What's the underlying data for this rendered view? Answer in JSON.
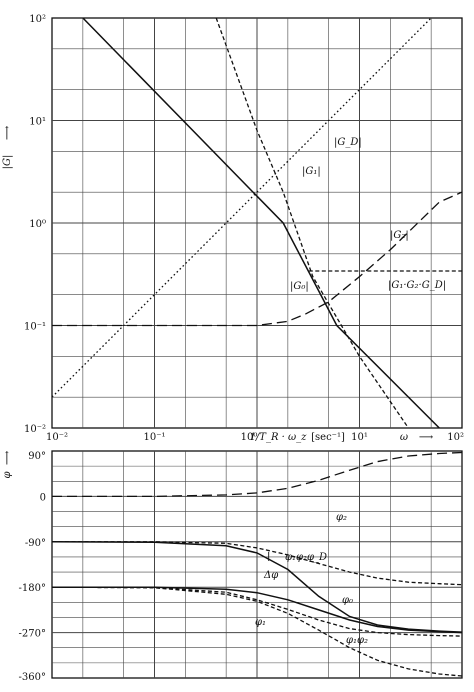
{
  "chart_data": [
    {
      "type": "line",
      "xscale": "log",
      "yscale": "log",
      "xlim": [
        0.01,
        100
      ],
      "ylim": [
        0.01,
        100
      ],
      "ylabel": "|G|",
      "xlabel_left": "1/T_R · ω_z",
      "xlabel_unit": "[sec⁻¹]",
      "xlabel_right": "ω",
      "x_ticks": [
        {
          "v": 0.01,
          "label": "10⁻²"
        },
        {
          "v": 0.1,
          "label": "10⁻¹"
        },
        {
          "v": 1,
          "label": "10⁰"
        },
        {
          "v": 10,
          "label": "10¹"
        },
        {
          "v": 100,
          "label": "10²"
        }
      ],
      "y_ticks": [
        {
          "v": 100,
          "label": "10²"
        },
        {
          "v": 10,
          "label": "10¹"
        },
        {
          "v": 1,
          "label": "10⁰"
        },
        {
          "v": 0.1,
          "label": "10⁻¹"
        },
        {
          "v": 0.01,
          "label": "10⁻²"
        }
      ],
      "grid": true,
      "series": [
        {
          "name": "|G₀|",
          "style": "solid",
          "x": [
            0.02,
            1.8,
            6,
            60
          ],
          "y": [
            100,
            1.0,
            0.1,
            0.01
          ]
        },
        {
          "name": "|G_D|",
          "style": "dotted",
          "x": [
            0.01,
            100
          ],
          "y": [
            0.02,
            200
          ]
        },
        {
          "name": "|G₁|",
          "style": "short-dash",
          "x": [
            0.4,
            1.0,
            1.8,
            3.5,
            10,
            30
          ],
          "y": [
            100,
            8.0,
            2.0,
            0.3,
            0.05,
            0.01
          ]
        },
        {
          "name": "|G₂|",
          "style": "long-dash",
          "x": [
            0.01,
            1.0,
            2.0,
            3.0,
            5.0,
            10,
            20,
            60,
            100
          ],
          "y": [
            0.1,
            0.1,
            0.11,
            0.13,
            0.17,
            0.3,
            0.55,
            1.6,
            2.0
          ]
        },
        {
          "name": "|G₁·G₂·G_D|",
          "style": "short-dash",
          "x": [
            3.2,
            100
          ],
          "y": [
            0.34,
            0.34
          ]
        }
      ],
      "annotations": [
        "|G_D|",
        "|G₁|",
        "|G₀|",
        "|G₂|",
        "|G₁·G₂·G_D|"
      ]
    },
    {
      "type": "line",
      "xscale": "log",
      "xlim": [
        0.01,
        100
      ],
      "ylim": [
        -360,
        90
      ],
      "ylabel": "φ",
      "y_ticks": [
        {
          "v": 90,
          "label": "90°"
        },
        {
          "v": 0,
          "label": "0"
        },
        {
          "v": -90,
          "label": "-90°"
        },
        {
          "v": -180,
          "label": "-180°"
        },
        {
          "v": -270,
          "label": "-270°"
        },
        {
          "v": -360,
          "label": "-360°"
        }
      ],
      "grid": true,
      "series": [
        {
          "name": "φ₂",
          "style": "long-dash",
          "x": [
            0.01,
            0.1,
            0.5,
            1,
            2,
            4,
            8,
            15,
            30,
            60,
            100
          ],
          "y": [
            0,
            0,
            3,
            7,
            16,
            32,
            52,
            69,
            80,
            85,
            87
          ]
        },
        {
          "name": "φ₁·φ₂·φ_D",
          "style": "short-dash",
          "x": [
            0.01,
            0.1,
            0.5,
            1,
            2,
            4,
            8,
            15,
            30,
            60,
            100
          ],
          "y": [
            -90,
            -90,
            -93,
            -102,
            -116,
            -133,
            -150,
            -162,
            -170,
            -173,
            -175
          ]
        },
        {
          "name": "φ₀",
          "style": "solid",
          "x": [
            0.01,
            0.1,
            0.5,
            1,
            2,
            4,
            8,
            15,
            30,
            60,
            100
          ],
          "y": [
            -90,
            -91,
            -98,
            -112,
            -145,
            -198,
            -238,
            -255,
            -263,
            -267,
            -269
          ]
        },
        {
          "name": "φ_(0)",
          "style": "solid",
          "x": [
            0.01,
            0.1,
            0.5,
            1,
            2,
            4,
            8,
            15,
            30,
            60,
            100
          ],
          "y": [
            -180,
            -180,
            -184,
            -191,
            -205,
            -225,
            -245,
            -258,
            -265,
            -268,
            -270
          ]
        },
        {
          "name": "φ₁",
          "style": "short-dash",
          "x": [
            0.01,
            0.1,
            0.5,
            1,
            2,
            4,
            8,
            15,
            30,
            60,
            100
          ],
          "y": [
            -180,
            -181,
            -190,
            -205,
            -224,
            -245,
            -262,
            -270,
            -274,
            -276,
            -277
          ]
        },
        {
          "name": "φ₁·φ₂",
          "style": "short-dash",
          "x": [
            0.01,
            0.1,
            0.5,
            1,
            2,
            4,
            8,
            15,
            30,
            60,
            100
          ],
          "y": [
            -180,
            -181,
            -194,
            -208,
            -232,
            -265,
            -300,
            -325,
            -342,
            -352,
            -356
          ]
        }
      ],
      "annotations": [
        "φ₂",
        "φ₁·φ₂·φ_D",
        "Δφ",
        "φ₀",
        "φ₁",
        "φ₁·φ₂"
      ]
    }
  ],
  "labels": {
    "g_axis": "|G|",
    "phi_axis": "φ",
    "gd": "|G_D|",
    "g1": "|G₁|",
    "g0": "|G₀|",
    "g2": "|G₂|",
    "g1g2gd": "|G₁·G₂·G_D|",
    "phi2": "φ₂",
    "phi1phi2phid": "φ₁φ₂φ_D",
    "dphi": "Δφ",
    "phi0": "φ₀",
    "phi1": "φ₁",
    "phi1phi2": "φ₁φ₂",
    "xaxis_left": "1/T_R · ω_z",
    "xaxis_unit": "[sec⁻¹]",
    "xaxis_omega": "ω"
  }
}
